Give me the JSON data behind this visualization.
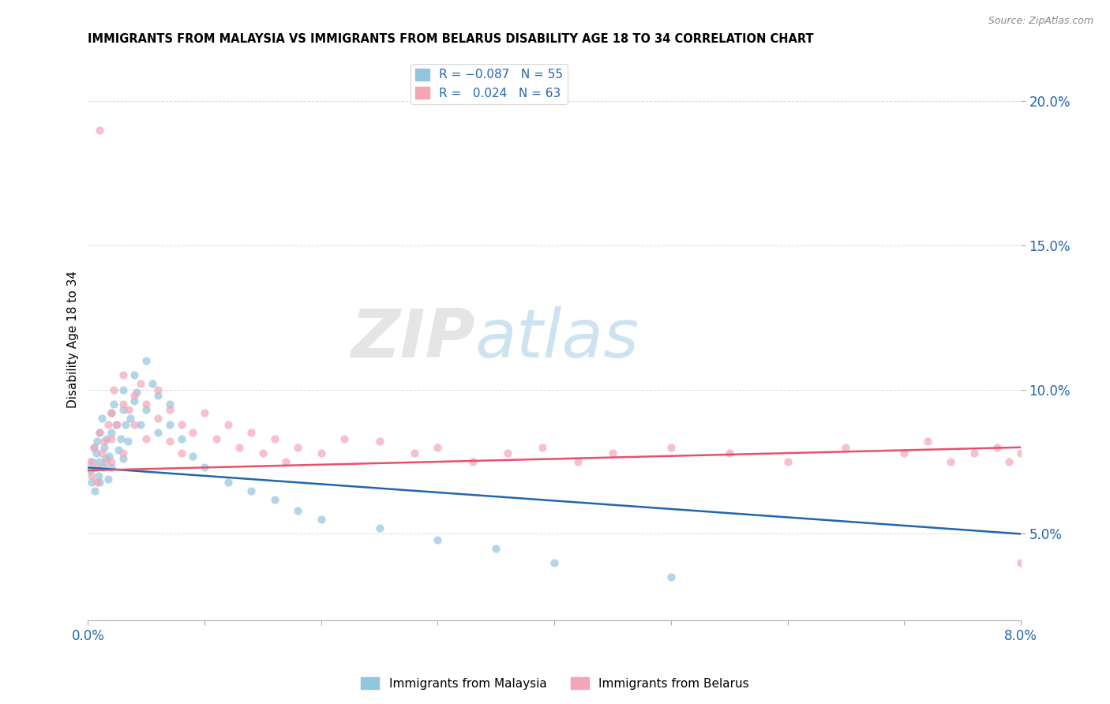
{
  "title": "IMMIGRANTS FROM MALAYSIA VS IMMIGRANTS FROM BELARUS DISABILITY AGE 18 TO 34 CORRELATION CHART",
  "source": "Source: ZipAtlas.com",
  "ylabel": "Disability Age 18 to 34",
  "xlim": [
    0.0,
    0.08
  ],
  "ylim": [
    0.02,
    0.215
  ],
  "xticks": [
    0.0,
    0.01,
    0.02,
    0.03,
    0.04,
    0.05,
    0.06,
    0.07,
    0.08
  ],
  "xticklabels": [
    "0.0%",
    "",
    "",
    "",
    "",
    "",
    "",
    "",
    "8.0%"
  ],
  "yticks": [
    0.05,
    0.1,
    0.15,
    0.2
  ],
  "yticklabels": [
    "5.0%",
    "10.0%",
    "15.0%",
    "20.0%"
  ],
  "malaysia_color": "#92c5de",
  "belarus_color": "#f4a6b8",
  "malaysia_line_color": "#2166ac",
  "belarus_line_color": "#e8506a",
  "watermark_zip": "ZIP",
  "watermark_atlas": "atlas",
  "watermark_zip_color": "#d0d0d0",
  "watermark_atlas_color": "#92c5de",
  "background_color": "#ffffff",
  "malaysia_x": [
    0.0002,
    0.0003,
    0.0004,
    0.0005,
    0.0006,
    0.0007,
    0.0008,
    0.0009,
    0.001,
    0.001,
    0.001,
    0.0012,
    0.0013,
    0.0014,
    0.0015,
    0.0016,
    0.0017,
    0.0018,
    0.002,
    0.002,
    0.002,
    0.0022,
    0.0024,
    0.0026,
    0.0028,
    0.003,
    0.003,
    0.003,
    0.0032,
    0.0034,
    0.0036,
    0.004,
    0.004,
    0.0042,
    0.0045,
    0.005,
    0.005,
    0.0055,
    0.006,
    0.006,
    0.007,
    0.007,
    0.008,
    0.009,
    0.01,
    0.012,
    0.014,
    0.016,
    0.018,
    0.02,
    0.025,
    0.03,
    0.035,
    0.04,
    0.05
  ],
  "malaysia_y": [
    0.072,
    0.068,
    0.075,
    0.08,
    0.065,
    0.078,
    0.082,
    0.07,
    0.085,
    0.075,
    0.068,
    0.09,
    0.073,
    0.08,
    0.076,
    0.083,
    0.069,
    0.077,
    0.092,
    0.085,
    0.073,
    0.095,
    0.088,
    0.079,
    0.083,
    0.1,
    0.093,
    0.076,
    0.088,
    0.082,
    0.09,
    0.105,
    0.096,
    0.099,
    0.088,
    0.11,
    0.093,
    0.102,
    0.098,
    0.085,
    0.095,
    0.088,
    0.083,
    0.077,
    0.073,
    0.068,
    0.065,
    0.062,
    0.058,
    0.055,
    0.052,
    0.048,
    0.045,
    0.04,
    0.035
  ],
  "belarus_x": [
    0.0002,
    0.0003,
    0.0005,
    0.0007,
    0.0008,
    0.001,
    0.001,
    0.0012,
    0.0014,
    0.0015,
    0.0017,
    0.002,
    0.002,
    0.002,
    0.0022,
    0.0025,
    0.003,
    0.003,
    0.003,
    0.0035,
    0.004,
    0.004,
    0.0045,
    0.005,
    0.005,
    0.006,
    0.006,
    0.007,
    0.007,
    0.008,
    0.008,
    0.009,
    0.01,
    0.011,
    0.012,
    0.013,
    0.014,
    0.015,
    0.016,
    0.017,
    0.018,
    0.02,
    0.022,
    0.025,
    0.028,
    0.03,
    0.033,
    0.036,
    0.039,
    0.042,
    0.045,
    0.05,
    0.055,
    0.06,
    0.065,
    0.07,
    0.072,
    0.074,
    0.076,
    0.078,
    0.079,
    0.08,
    0.08
  ],
  "belarus_y": [
    0.075,
    0.07,
    0.08,
    0.073,
    0.068,
    0.085,
    0.19,
    0.078,
    0.082,
    0.075,
    0.088,
    0.092,
    0.083,
    0.075,
    0.1,
    0.088,
    0.095,
    0.105,
    0.078,
    0.093,
    0.098,
    0.088,
    0.102,
    0.095,
    0.083,
    0.1,
    0.09,
    0.093,
    0.082,
    0.088,
    0.078,
    0.085,
    0.092,
    0.083,
    0.088,
    0.08,
    0.085,
    0.078,
    0.083,
    0.075,
    0.08,
    0.078,
    0.083,
    0.082,
    0.078,
    0.08,
    0.075,
    0.078,
    0.08,
    0.075,
    0.078,
    0.08,
    0.078,
    0.075,
    0.08,
    0.078,
    0.082,
    0.075,
    0.078,
    0.08,
    0.075,
    0.04,
    0.078
  ]
}
